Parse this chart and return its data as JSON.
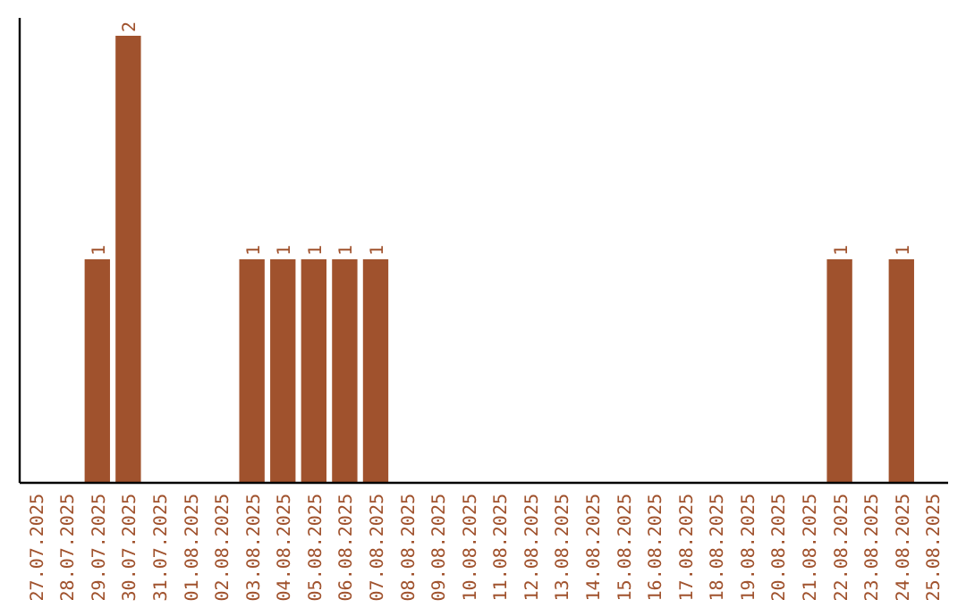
{
  "chart_data": {
    "type": "bar",
    "categories": [
      "27.07.2025",
      "28.07.2025",
      "29.07.2025",
      "30.07.2025",
      "31.07.2025",
      "01.08.2025",
      "02.08.2025",
      "03.08.2025",
      "04.08.2025",
      "05.08.2025",
      "06.08.2025",
      "07.08.2025",
      "08.08.2025",
      "09.08.2025",
      "10.08.2025",
      "11.08.2025",
      "12.08.2025",
      "13.08.2025",
      "14.08.2025",
      "15.08.2025",
      "16.08.2025",
      "17.08.2025",
      "18.08.2025",
      "19.08.2025",
      "20.08.2025",
      "21.08.2025",
      "22.08.2025",
      "23.08.2025",
      "24.08.2025",
      "25.08.2025"
    ],
    "values": [
      0,
      0,
      1,
      2,
      0,
      0,
      0,
      1,
      1,
      1,
      1,
      1,
      0,
      0,
      0,
      0,
      0,
      0,
      0,
      0,
      0,
      0,
      0,
      0,
      0,
      0,
      1,
      0,
      1,
      0
    ],
    "value_labels": [
      null,
      null,
      "1",
      "2",
      null,
      null,
      null,
      "1",
      "1",
      "1",
      "1",
      "1",
      null,
      null,
      null,
      null,
      null,
      null,
      null,
      null,
      null,
      null,
      null,
      null,
      null,
      null,
      "1",
      null,
      "1",
      null
    ],
    "color": "#a0522d",
    "tick_labels": "x"
  }
}
